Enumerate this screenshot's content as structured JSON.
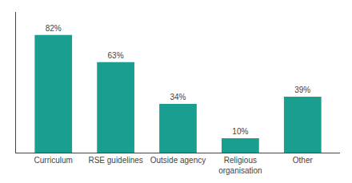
{
  "chart_data": {
    "type": "bar",
    "categories": [
      "Curriculum",
      "RSE guidelines",
      "Outside agency",
      "Religious\norganisation",
      "Other"
    ],
    "values": [
      82,
      63,
      34,
      10,
      39
    ],
    "value_labels": [
      "82%",
      "63%",
      "34%",
      "10%",
      "39%"
    ],
    "data_labels": true,
    "color": "#1a9e8f",
    "ylim": [
      0,
      98
    ],
    "grid": false,
    "tick_labels": "x"
  }
}
